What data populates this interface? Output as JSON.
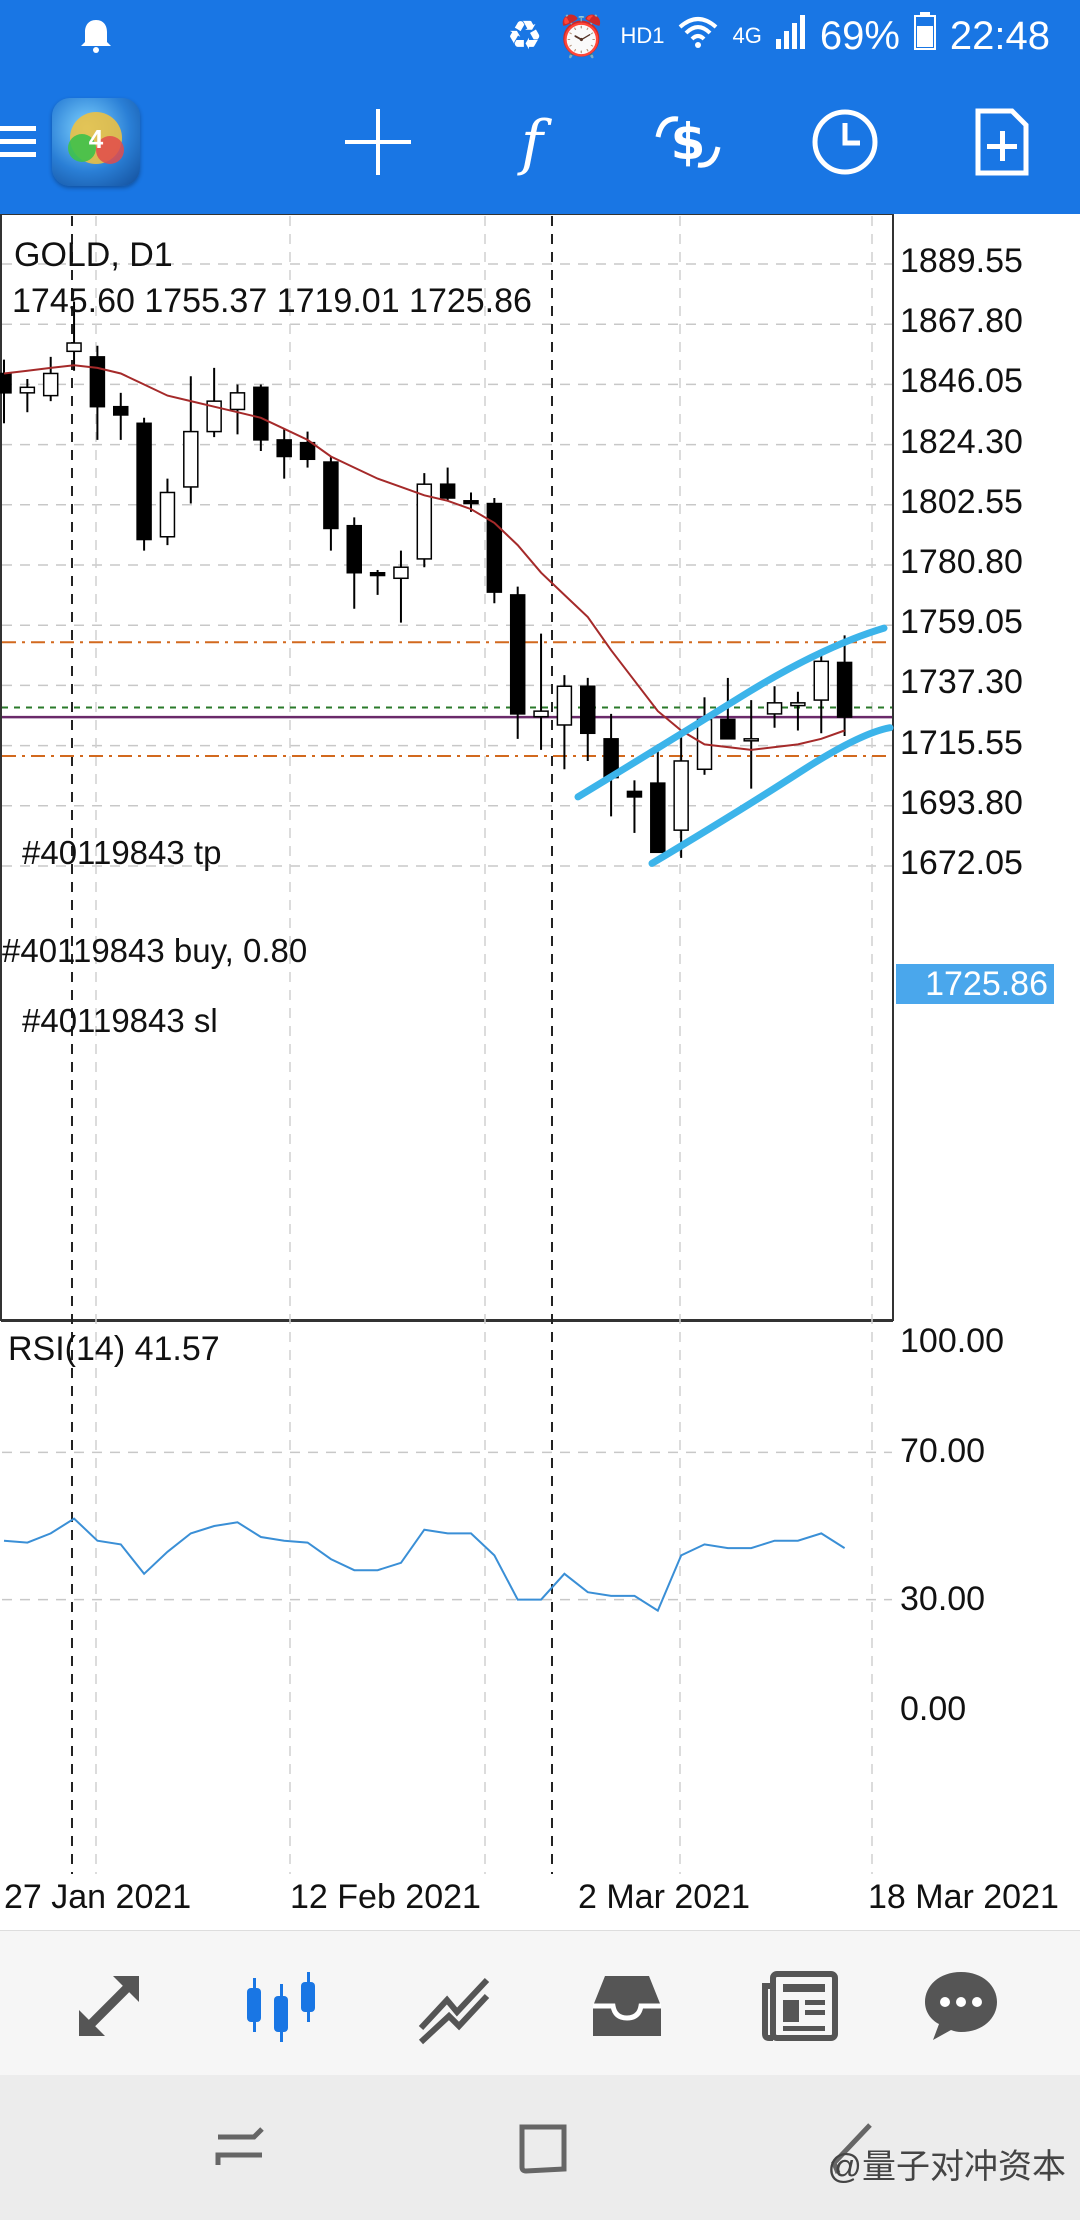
{
  "status_bar": {
    "network_label": "HD1",
    "signal_label": "4G",
    "battery_percent": "69%",
    "time": "22:48"
  },
  "toolbar": {
    "icons": [
      "menu-icon",
      "metatrader-logo-icon",
      "crosshair-icon",
      "indicators-icon",
      "trade-icon",
      "timeframe-icon",
      "new-order-icon"
    ]
  },
  "chart": {
    "symbol_title": "GOLD, D1",
    "ohlc": "1745.60 1755.37 1719.01 1725.86",
    "price_scale": [
      "1889.55",
      "1867.80",
      "1846.05",
      "1824.30",
      "1802.55",
      "1780.80",
      "1759.05",
      "1737.30",
      "1715.55",
      "1693.80",
      "1672.05"
    ],
    "current_price": "1725.86",
    "order_tp_label": "#40119843 tp",
    "order_buy_label": "#40119843 buy, 0.80",
    "order_sl_label": "#40119843 sl",
    "rsi_label": "RSI(14) 41.57",
    "rsi_scale": [
      "100.00",
      "70.00",
      "30.00",
      "0.00"
    ],
    "date_labels": [
      "27 Jan 2021",
      "12 Feb 2021",
      "2 Mar 2021",
      "18 Mar 2021"
    ],
    "colors": {
      "bull": "#ffffff",
      "bear": "#000000",
      "ma": "#a52a2a",
      "rsi": "#3a8fd6",
      "trendline": "#3cb4ea",
      "tp_sl": "#d2691e",
      "current": "#4aa7ec"
    }
  },
  "bottom_nav": {
    "items": [
      "quotes-icon",
      "chart-icon",
      "trade-icon",
      "history-icon",
      "news-icon",
      "chat-icon"
    ],
    "active": "chart-icon"
  },
  "watermark": "@量子对冲资本"
}
